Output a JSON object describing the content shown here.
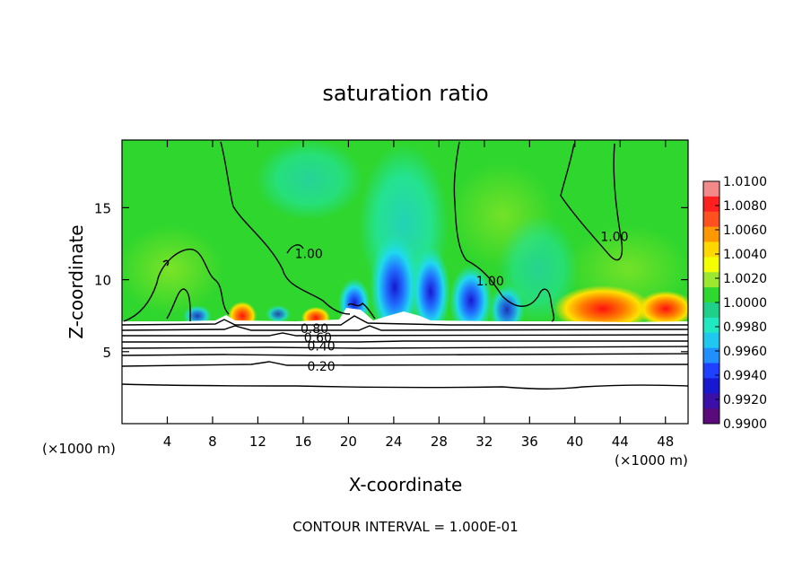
{
  "chart_data": {
    "type": "heatmap",
    "title": "saturation ratio",
    "xlabel": "X-coordinate",
    "ylabel": "Z-coordinate",
    "x_unit": "(×1000 m)",
    "y_unit": "(×1000 m)",
    "xlim": [
      0,
      50
    ],
    "ylim": [
      0,
      19.7
    ],
    "x_ticks": [
      4,
      8,
      12,
      16,
      20,
      24,
      28,
      32,
      36,
      40,
      44,
      48
    ],
    "y_ticks": [
      5,
      10,
      15
    ],
    "colorbar": {
      "range": [
        0.99,
        1.01
      ],
      "tick_labels": [
        "1.0100",
        "1.0080",
        "1.0060",
        "1.0040",
        "1.0020",
        "1.0000",
        "0.9980",
        "0.9960",
        "0.9940",
        "0.9920",
        "0.9900"
      ],
      "colors": [
        "#f28a8a",
        "#ff2020",
        "#ff5020",
        "#ff9800",
        "#ffd800",
        "#f4ff00",
        "#9ce830",
        "#2ed82e",
        "#1ed08a",
        "#20e8c0",
        "#20c8f0",
        "#2090ff",
        "#2040ff",
        "#1818d0",
        "#3a10a8",
        "#5a0a7a"
      ]
    },
    "contour_labels": [
      {
        "text": "1.00",
        "x": 16.5,
        "z": 11.8
      },
      {
        "text": "1.00",
        "x": 32.5,
        "z": 9.9
      },
      {
        "text": "1.00",
        "x": 43.5,
        "z": 13.0
      },
      {
        "text": "0.80",
        "x": 17.0,
        "z": 6.6
      },
      {
        "text": "0.60",
        "x": 17.3,
        "z": 6.0
      },
      {
        "text": "0.40",
        "x": 17.6,
        "z": 5.4
      },
      {
        "text": "0.20",
        "x": 17.6,
        "z": 4.0
      }
    ],
    "footer": "CONTOUR INTERVAL = 1.000E-01"
  }
}
